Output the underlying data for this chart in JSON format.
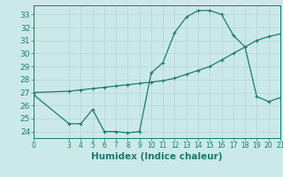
{
  "title": "",
  "xlabel": "Humidex (Indice chaleur)",
  "bg_color": "#cce9e9",
  "line_color": "#1a7a6e",
  "grid_color": "#b8d8d8",
  "xlim": [
    0,
    21
  ],
  "ylim": [
    23.5,
    33.7
  ],
  "yticks": [
    24,
    25,
    26,
    27,
    28,
    29,
    30,
    31,
    32,
    33
  ],
  "xticks": [
    0,
    3,
    4,
    5,
    6,
    7,
    8,
    9,
    10,
    11,
    12,
    13,
    14,
    15,
    16,
    17,
    18,
    19,
    20,
    21
  ],
  "series1_x": [
    0,
    3,
    4,
    5,
    6,
    7,
    8,
    9,
    10,
    11,
    12,
    13,
    14,
    15,
    16,
    17,
    18,
    19,
    20,
    21
  ],
  "series1_y": [
    27.0,
    27.1,
    27.2,
    27.3,
    27.4,
    27.5,
    27.6,
    27.7,
    27.8,
    27.9,
    28.1,
    28.4,
    28.7,
    29.0,
    29.5,
    30.0,
    30.5,
    31.0,
    31.3,
    31.5
  ],
  "series2_x": [
    0,
    3,
    4,
    5,
    6,
    7,
    8,
    9,
    10,
    11,
    12,
    13,
    14,
    15,
    16,
    17,
    18,
    19,
    20,
    21
  ],
  "series2_y": [
    26.8,
    24.6,
    24.6,
    25.7,
    24.0,
    24.0,
    23.9,
    24.0,
    28.5,
    29.3,
    31.6,
    32.8,
    33.3,
    33.3,
    33.0,
    31.4,
    30.5,
    26.7,
    26.3,
    26.6
  ],
  "tick_fontsize": 6.5,
  "xlabel_fontsize": 7.5
}
